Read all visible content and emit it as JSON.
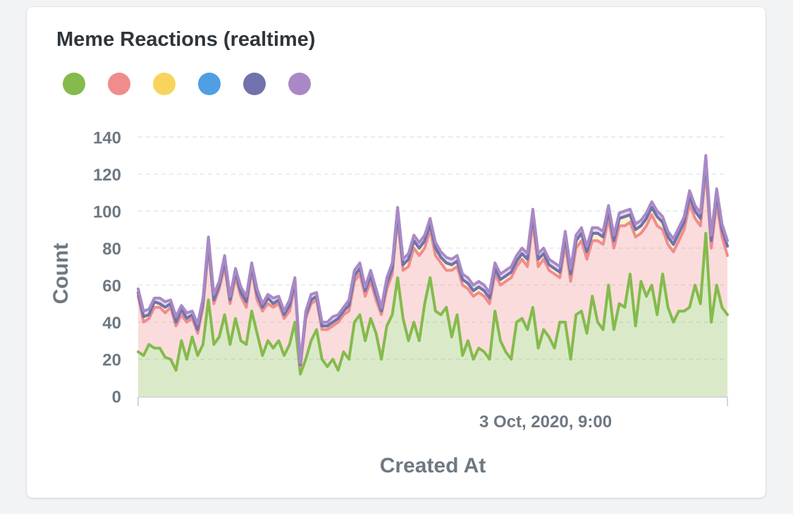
{
  "card": {
    "title": "Meme Reactions (realtime)"
  },
  "legend": [
    {
      "color": "#84bb4c"
    },
    {
      "color": "#f08c8c"
    },
    {
      "color": "#f9d45c"
    },
    {
      "color": "#509ee3"
    },
    {
      "color": "#7172ad"
    },
    {
      "color": "#a989c5"
    }
  ],
  "chart_data": {
    "type": "area",
    "stacked": true,
    "xlabel": "Created At",
    "ylabel": "Count",
    "ylim": [
      0,
      150
    ],
    "yticks": [
      0,
      20,
      40,
      60,
      80,
      100,
      120,
      140
    ],
    "xticks": [
      "3 Oct, 2020, 9:00"
    ],
    "grid": true,
    "legend_position": "top-left",
    "x_points": 110,
    "series": [
      {
        "color": "#84bb4c",
        "values": [
          24,
          22,
          28,
          26,
          26,
          21,
          20,
          14,
          30,
          20,
          32,
          22,
          28,
          52,
          28,
          32,
          44,
          28,
          42,
          30,
          28,
          46,
          34,
          22,
          30,
          26,
          30,
          22,
          28,
          40,
          12,
          20,
          30,
          36,
          20,
          16,
          20,
          14,
          24,
          20,
          40,
          44,
          30,
          42,
          34,
          20,
          38,
          44,
          64,
          42,
          30,
          40,
          30,
          50,
          64,
          46,
          44,
          48,
          32,
          44,
          22,
          30,
          20,
          26,
          24,
          20,
          46,
          30,
          24,
          20,
          40,
          42,
          36,
          48,
          26,
          36,
          32,
          26,
          40,
          40,
          20,
          44,
          46,
          34,
          54,
          40,
          36,
          60,
          36,
          50,
          48,
          66,
          38,
          62,
          54,
          60,
          44,
          66,
          48,
          40,
          46,
          46,
          48,
          60,
          50,
          88,
          40,
          60,
          48,
          44
        ]
      },
      {
        "color": "#f08c8c",
        "values": [
          30,
          18,
          14,
          22,
          22,
          24,
          28,
          24,
          14,
          20,
          10,
          12,
          20,
          28,
          22,
          26,
          26,
          22,
          22,
          24,
          20,
          22,
          18,
          24,
          20,
          22,
          20,
          20,
          18,
          20,
          4,
          22,
          20,
          16,
          16,
          20,
          18,
          26,
          20,
          26,
          22,
          22,
          24,
          20,
          18,
          24,
          20,
          22,
          32,
          26,
          40,
          40,
          46,
          30,
          26,
          30,
          28,
          20,
          36,
          26,
          38,
          28,
          34,
          30,
          30,
          30,
          20,
          30,
          38,
          44,
          30,
          32,
          34,
          46,
          44,
          38,
          36,
          40,
          24,
          42,
          42,
          36,
          38,
          40,
          30,
          44,
          46,
          36,
          44,
          42,
          44,
          28,
          48,
          26,
          38,
          38,
          48,
          24,
          34,
          38,
          38,
          44,
          56,
          36,
          42,
          34,
          40,
          44,
          38,
          32
        ]
      },
      {
        "color": "#f9d45c",
        "values": [
          2,
          3,
          2,
          3,
          2,
          3,
          2,
          2,
          3,
          2,
          2,
          2,
          3,
          3,
          2,
          2,
          3,
          2,
          3,
          2,
          3,
          2,
          3,
          2,
          3,
          2,
          2,
          2,
          3,
          2,
          1,
          2,
          2,
          2,
          2,
          2,
          2,
          2,
          2,
          3,
          3,
          3,
          3,
          3,
          3,
          2,
          3,
          3,
          3,
          3,
          4,
          4,
          4,
          4,
          3,
          4,
          3,
          4,
          3,
          3,
          3,
          3,
          3,
          3,
          3,
          3,
          3,
          3,
          3,
          3,
          3,
          3,
          4,
          4,
          4,
          3,
          3,
          3,
          3,
          4,
          4,
          4,
          4,
          4,
          4,
          4,
          4,
          4,
          4,
          4,
          5,
          4,
          4,
          4,
          4,
          4,
          5,
          4,
          4,
          4,
          4,
          4,
          4,
          4,
          4,
          5,
          4,
          5,
          4,
          5
        ]
      },
      {
        "color": "#509ee3",
        "values": [
          0,
          0,
          0,
          0,
          0,
          0,
          0,
          0,
          0,
          0,
          0,
          0,
          0,
          0,
          0,
          0,
          0,
          0,
          0,
          0,
          0,
          0,
          0,
          0,
          0,
          0,
          0,
          0,
          0,
          0,
          0,
          0,
          0,
          0,
          0,
          0,
          0,
          0,
          0,
          0,
          0,
          0,
          0,
          0,
          0,
          0,
          0,
          0,
          0,
          0,
          0,
          0,
          0,
          0,
          0,
          0,
          0,
          0,
          0,
          0,
          0,
          0,
          0,
          0,
          0,
          0,
          0,
          0,
          0,
          0,
          0,
          0,
          0,
          0,
          0,
          0,
          0,
          0,
          0,
          0,
          0,
          0,
          0,
          0,
          0,
          0,
          0,
          0,
          0,
          0,
          0,
          0,
          0,
          0,
          0,
          0,
          0,
          0,
          0,
          0,
          0,
          0,
          0,
          0,
          0,
          0,
          0,
          0,
          0,
          0
        ]
      },
      {
        "color": "#7172ad",
        "values": [
          0,
          0,
          0,
          0,
          0,
          0,
          0,
          0,
          0,
          0,
          0,
          0,
          0,
          0,
          0,
          0,
          0,
          0,
          0,
          0,
          0,
          0,
          0,
          0,
          0,
          0,
          0,
          0,
          0,
          0,
          0,
          0,
          0,
          0,
          0,
          0,
          0,
          0,
          0,
          0,
          0,
          0,
          0,
          0,
          0,
          0,
          0,
          0,
          0,
          0,
          0,
          0,
          0,
          0,
          0,
          0,
          0,
          0,
          0,
          0,
          0,
          0,
          0,
          0,
          0,
          0,
          0,
          0,
          0,
          0,
          0,
          0,
          0,
          0,
          0,
          0,
          0,
          0,
          0,
          0,
          0,
          0,
          0,
          0,
          0,
          0,
          0,
          0,
          0,
          0,
          0,
          0,
          0,
          0,
          0,
          0,
          0,
          0,
          0,
          0,
          0,
          0,
          0,
          0,
          0,
          0,
          0,
          0,
          0,
          0
        ]
      },
      {
        "color": "#a989c5",
        "values": [
          2,
          3,
          3,
          2,
          3,
          3,
          2,
          3,
          2,
          3,
          2,
          3,
          2,
          3,
          3,
          2,
          3,
          2,
          2,
          3,
          3,
          2,
          3,
          2,
          2,
          3,
          2,
          2,
          3,
          2,
          1,
          2,
          3,
          2,
          2,
          2,
          3,
          2,
          2,
          3,
          3,
          3,
          2,
          3,
          3,
          2,
          3,
          3,
          3,
          3,
          3,
          3,
          3,
          3,
          3,
          3,
          3,
          3,
          3,
          3,
          3,
          3,
          3,
          3,
          3,
          3,
          3,
          3,
          3,
          3,
          3,
          3,
          3,
          3,
          3,
          3,
          3,
          3,
          3,
          3,
          3,
          3,
          3,
          3,
          3,
          3,
          3,
          3,
          3,
          3,
          3,
          3,
          3,
          3,
          3,
          3,
          3,
          3,
          3,
          3,
          3,
          3,
          3,
          3,
          3,
          3,
          3,
          3,
          3,
          3
        ]
      }
    ]
  }
}
